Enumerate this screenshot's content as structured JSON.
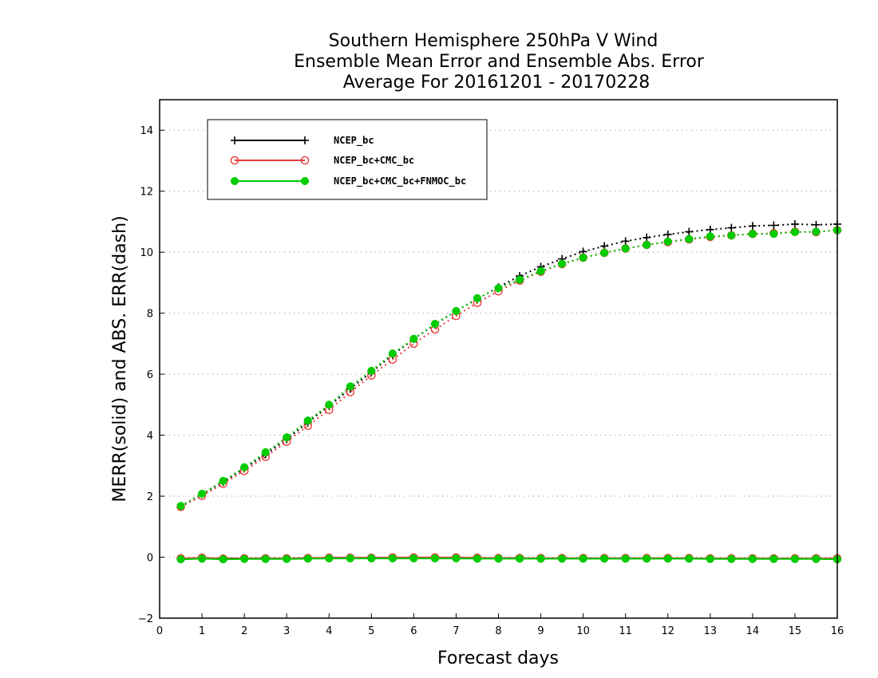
{
  "chart_data": {
    "type": "line",
    "title": [
      "Southern Hemisphere 250hPa V Wind",
      "Ensemble Mean Error and Ensemble Abs. Error",
      "Average For 20161201 - 20170228"
    ],
    "xlabel": "Forecast days",
    "ylabel": "MERR(solid) and ABS. ERR(dash)",
    "xlim": [
      0,
      16
    ],
    "ylim": [
      -2,
      15
    ],
    "xticks": [
      "0",
      "1",
      "2",
      "3",
      "4",
      "5",
      "6",
      "7",
      "8",
      "9",
      "10",
      "11",
      "12",
      "13",
      "14",
      "15",
      "16"
    ],
    "yticks": [
      "−2",
      "0",
      "2",
      "4",
      "6",
      "8",
      "10",
      "12",
      "14"
    ],
    "grid": "horizontal dotted",
    "legend_position": "top-left",
    "x": [
      0.5,
      1,
      1.5,
      2,
      2.5,
      3,
      3.5,
      4,
      4.5,
      5,
      5.5,
      6,
      6.5,
      7,
      7.5,
      8,
      8.5,
      9,
      9.5,
      10,
      10.5,
      11,
      11.5,
      12,
      12.5,
      13,
      13.5,
      14,
      14.5,
      15,
      15.5,
      16
    ],
    "series": [
      {
        "name": "NCEP_bc",
        "color": "#000000",
        "marker": "plus",
        "abs_err": [
          1.68,
          2.07,
          2.47,
          2.91,
          3.37,
          3.87,
          4.42,
          4.96,
          5.52,
          6.07,
          6.63,
          7.15,
          7.63,
          8.07,
          8.47,
          8.85,
          9.22,
          9.52,
          9.78,
          10.02,
          10.2,
          10.36,
          10.48,
          10.58,
          10.67,
          10.74,
          10.8,
          10.86,
          10.88,
          10.92,
          10.9,
          10.92
        ],
        "mean_err": [
          -0.05,
          -0.03,
          -0.04,
          -0.04,
          -0.04,
          -0.04,
          -0.03,
          -0.02,
          -0.02,
          -0.02,
          -0.02,
          -0.01,
          -0.02,
          -0.02,
          -0.03,
          -0.03,
          -0.03,
          -0.04,
          -0.04,
          -0.04,
          -0.04,
          -0.04,
          -0.04,
          -0.04,
          -0.04,
          -0.05,
          -0.05,
          -0.05,
          -0.05,
          -0.05,
          -0.05,
          -0.05
        ]
      },
      {
        "name": "NCEP_bc+CMC_bc",
        "color": "#e83c3c",
        "marker": "open-circle",
        "abs_err": [
          1.65,
          2.01,
          2.41,
          2.83,
          3.29,
          3.79,
          4.31,
          4.83,
          5.41,
          5.96,
          6.48,
          7.0,
          7.47,
          7.91,
          8.34,
          8.72,
          9.07,
          9.36,
          9.61,
          9.82,
          9.98,
          10.12,
          10.24,
          10.33,
          10.42,
          10.5,
          10.55,
          10.6,
          10.62,
          10.67,
          10.66,
          10.72
        ],
        "mean_err": [
          -0.04,
          -0.02,
          -0.05,
          -0.04,
          -0.04,
          -0.04,
          -0.03,
          -0.02,
          -0.02,
          -0.02,
          -0.01,
          -0.01,
          -0.01,
          -0.01,
          -0.02,
          -0.03,
          -0.03,
          -0.03,
          -0.03,
          -0.03,
          -0.03,
          -0.03,
          -0.03,
          -0.03,
          -0.03,
          -0.04,
          -0.04,
          -0.04,
          -0.04,
          -0.04,
          -0.04,
          -0.04
        ]
      },
      {
        "name": "NCEP_bc+CMC_bc+FNMOC_bc",
        "color": "#00cc00",
        "marker": "filled-circle",
        "abs_err": [
          1.68,
          2.08,
          2.5,
          2.95,
          3.44,
          3.93,
          4.48,
          5.0,
          5.6,
          6.11,
          6.68,
          7.16,
          7.65,
          8.07,
          8.49,
          8.82,
          9.1,
          9.38,
          9.62,
          9.82,
          9.98,
          10.12,
          10.24,
          10.35,
          10.43,
          10.52,
          10.55,
          10.6,
          10.6,
          10.66,
          10.67,
          10.72
        ],
        "mean_err": [
          -0.07,
          -0.05,
          -0.07,
          -0.06,
          -0.06,
          -0.06,
          -0.05,
          -0.04,
          -0.04,
          -0.04,
          -0.04,
          -0.04,
          -0.04,
          -0.04,
          -0.05,
          -0.05,
          -0.05,
          -0.05,
          -0.05,
          -0.05,
          -0.05,
          -0.05,
          -0.05,
          -0.05,
          -0.05,
          -0.06,
          -0.06,
          -0.06,
          -0.06,
          -0.06,
          -0.06,
          -0.07
        ]
      }
    ]
  }
}
